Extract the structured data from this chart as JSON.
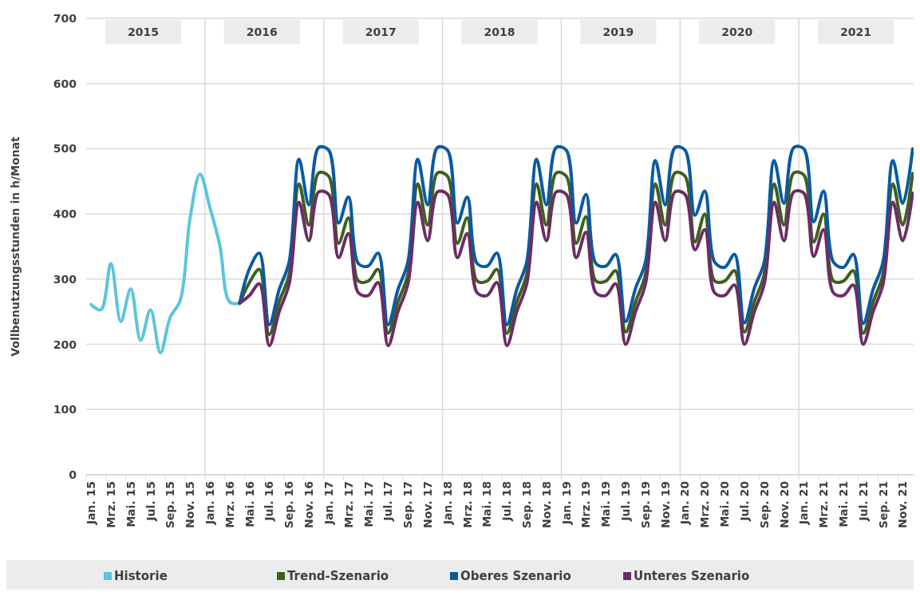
{
  "chart_data": {
    "type": "line",
    "ylabel": "Vollbenutzungsstunden in h/Monat",
    "categories": [
      "Jan. 15",
      null,
      "Mrz. 15",
      null,
      "Mai. 15",
      null,
      "Jul. 15",
      null,
      "Sep. 15",
      null,
      "Nov. 15",
      null,
      "Jan. 16",
      null,
      "Mrz. 16",
      null,
      "Mai. 16",
      null,
      "Jul. 16",
      null,
      "Sep. 16",
      null,
      "Nov. 16",
      null,
      "Jan. 17",
      null,
      "Mrz. 17",
      null,
      "Mai. 17",
      null,
      "Jul. 17",
      null,
      "Sep. 17",
      null,
      "Nov. 17",
      null,
      "Jan. 18",
      null,
      "Mrz. 18",
      null,
      "Mai. 18",
      null,
      "Jul. 18",
      null,
      "Sep. 18",
      null,
      "Nov. 18",
      null,
      "Jan. 19",
      null,
      "Mrz. 19",
      null,
      "Mai. 19",
      null,
      "Jul. 19",
      null,
      "Sep. 19",
      null,
      "Nov. 19",
      null,
      "Jan. 20",
      null,
      "Mrz. 20",
      null,
      "Mai. 20",
      null,
      "Jul. 20",
      null,
      "Sep. 20",
      null,
      "Nov. 20",
      null,
      "Jan. 21",
      null,
      "Mrz. 21",
      null,
      "Mai. 21",
      null,
      "Jul. 21",
      null,
      "Sep. 21",
      null,
      "Nov. 21",
      null
    ],
    "series": [
      {
        "name": "Historie",
        "color": "#5bc5db",
        "values": [
          261,
          253,
          324,
          235,
          285,
          206,
          253,
          187,
          242,
          267,
          394,
          461,
          410,
          352,
          265,
          263,
          null,
          null,
          null,
          null,
          null,
          null,
          null,
          null,
          null,
          null,
          null,
          null,
          null,
          null,
          null,
          null,
          null,
          null,
          null,
          null,
          null,
          null,
          null,
          null,
          null,
          null,
          null,
          null,
          null,
          null,
          null,
          null,
          null,
          null,
          null,
          null,
          null,
          null,
          null,
          null,
          null,
          null,
          null,
          null,
          null,
          null,
          null,
          null,
          null,
          null,
          null,
          null,
          null,
          null,
          null,
          null,
          null,
          null,
          null,
          null,
          null,
          null,
          null,
          null,
          null,
          null,
          null,
          null
        ]
      },
      {
        "name": "Trend-Szenario",
        "color": "#3f5f1f",
        "values": [
          null,
          null,
          null,
          null,
          null,
          null,
          null,
          null,
          null,
          null,
          null,
          null,
          null,
          null,
          null,
          263,
          295,
          315,
          215,
          265,
          307,
          446,
          383,
          463,
          458,
          355,
          394,
          297,
          297,
          315,
          217,
          265,
          307,
          446,
          383,
          463,
          458,
          355,
          394,
          297,
          297,
          315,
          217,
          265,
          307,
          446,
          383,
          463,
          458,
          355,
          396,
          297,
          297,
          313,
          219,
          265,
          307,
          446,
          383,
          463,
          458,
          357,
          400,
          297,
          297,
          313,
          219,
          265,
          307,
          446,
          383,
          463,
          460,
          357,
          400,
          297,
          297,
          313,
          217,
          265,
          307,
          446,
          383,
          462
        ]
      },
      {
        "name": "Oberes Szenario",
        "color": "#0b5aa0",
        "values": [
          null,
          null,
          null,
          null,
          null,
          null,
          null,
          null,
          null,
          null,
          null,
          null,
          null,
          null,
          null,
          263,
          316,
          340,
          230,
          284,
          326,
          484,
          414,
          502,
          498,
          386,
          426,
          324,
          320,
          340,
          230,
          284,
          326,
          484,
          414,
          502,
          498,
          386,
          426,
          324,
          320,
          340,
          230,
          284,
          326,
          484,
          414,
          502,
          498,
          386,
          430,
          324,
          320,
          338,
          235,
          286,
          326,
          482,
          414,
          502,
          498,
          398,
          435,
          326,
          318,
          338,
          233,
          286,
          326,
          482,
          416,
          502,
          500,
          388,
          435,
          326,
          318,
          338,
          232,
          284,
          326,
          482,
          416,
          500
        ]
      },
      {
        "name": "Unteres Szenario",
        "color": "#6b2d63",
        "values": [
          null,
          null,
          null,
          null,
          null,
          null,
          null,
          null,
          null,
          null,
          null,
          null,
          null,
          null,
          null,
          263,
          275,
          293,
          198,
          250,
          292,
          418,
          359,
          434,
          430,
          333,
          370,
          279,
          275,
          295,
          198,
          250,
          292,
          418,
          359,
          434,
          430,
          333,
          370,
          279,
          275,
          295,
          198,
          250,
          292,
          418,
          359,
          434,
          430,
          333,
          372,
          279,
          275,
          293,
          200,
          250,
          292,
          418,
          359,
          434,
          430,
          345,
          376,
          279,
          275,
          291,
          200,
          250,
          292,
          418,
          359,
          434,
          432,
          335,
          376,
          279,
          275,
          291,
          200,
          250,
          292,
          418,
          359,
          432
        ]
      }
    ],
    "ylim": [
      0,
      700
    ],
    "yticks": [
      0,
      100,
      200,
      300,
      400,
      500,
      600,
      700
    ],
    "grid": "y",
    "legend": "bottom",
    "marker": "none",
    "line_style": "solid",
    "annotations": [
      "2015",
      "2016",
      "2017",
      "2018",
      "2019",
      "2020",
      "2021"
    ]
  }
}
